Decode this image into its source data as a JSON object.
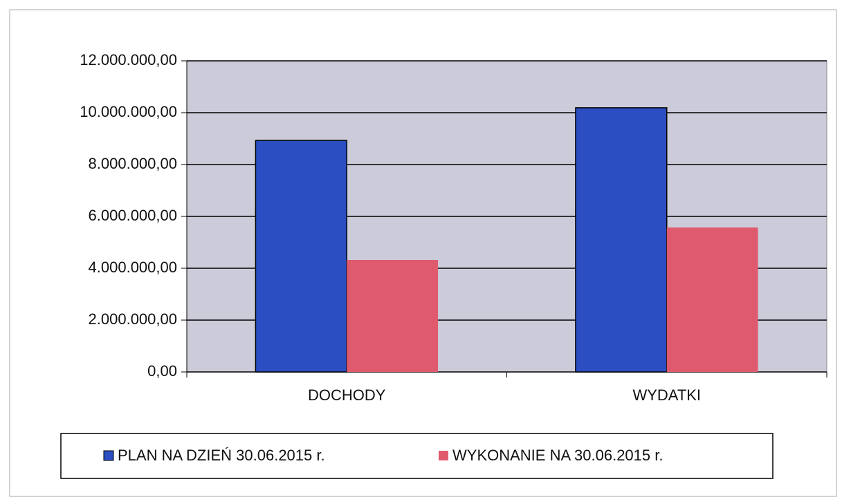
{
  "chart_data": {
    "type": "bar",
    "categories": [
      "DOCHODY",
      "WYDATKI"
    ],
    "series": [
      {
        "name": "PLAN NA DZIEŃ 30.06.2015 r.",
        "color": "#2b4fc2",
        "values": [
          8930000,
          10190000
        ]
      },
      {
        "name": "WYKONANIE NA 30.06.2015 r.",
        "color": "#e05a6e",
        "values": [
          4320000,
          5570000
        ]
      }
    ],
    "ylim": [
      0,
      12000000
    ],
    "yticks": [
      {
        "value": 0,
        "label": "0,00"
      },
      {
        "value": 2000000,
        "label": "2.000.000,00"
      },
      {
        "value": 4000000,
        "label": "4.000.000,00"
      },
      {
        "value": 6000000,
        "label": "6.000.000,00"
      },
      {
        "value": 8000000,
        "label": "8.000.000,00"
      },
      {
        "value": 10000000,
        "label": "10.000.000,00"
      },
      {
        "value": 12000000,
        "label": "12.000.000,00"
      }
    ],
    "grid": true,
    "legend": "bottom"
  }
}
